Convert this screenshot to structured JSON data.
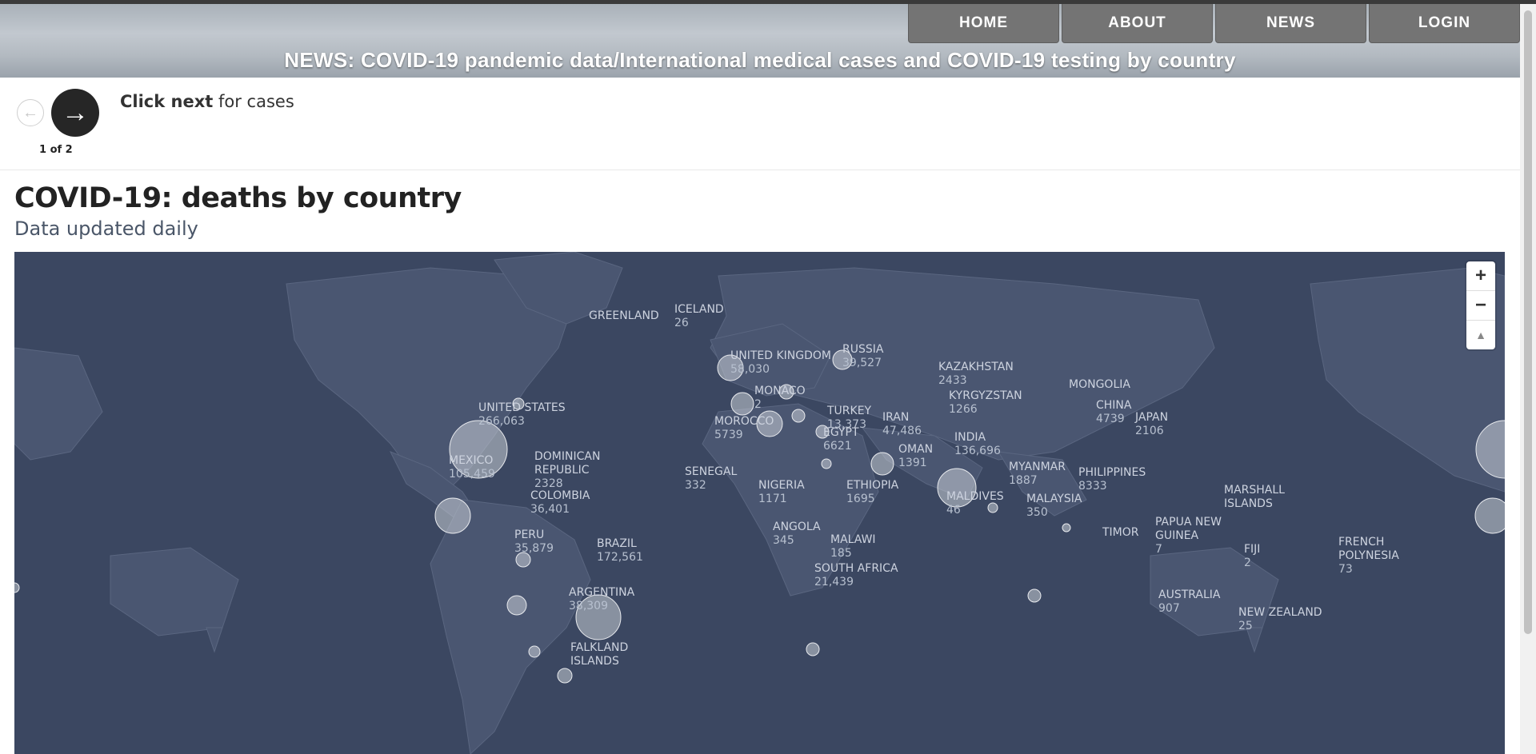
{
  "nav": {
    "items": [
      {
        "label": "HOME"
      },
      {
        "label": "ABOUT"
      },
      {
        "label": "NEWS"
      },
      {
        "label": "LOGIN"
      }
    ]
  },
  "header": {
    "headline": "NEWS: COVID-19 pandemic data/International medical cases and COVID-19 testing by country"
  },
  "stepper": {
    "instruction_bold": "Click next",
    "instruction_rest": " for cases",
    "counter": "1 of 2",
    "prev_icon": "arrow-left-icon",
    "next_icon": "arrow-right-icon"
  },
  "map": {
    "title": "COVID-19: deaths by country",
    "subtitle": "Data updated daily",
    "zoom_in": "+",
    "zoom_out": "−",
    "compass": "▲",
    "colors": {
      "background": "#3b4761",
      "land": "#4a5671",
      "bubble": "#c9cdd5"
    },
    "labels": [
      {
        "name": "GREENLAND",
        "value": ""
      },
      {
        "name": "ICELAND",
        "value": "26"
      },
      {
        "name": "UNITED KINGDOM",
        "value": "58,030"
      },
      {
        "name": "RUSSIA",
        "value": "39,527"
      },
      {
        "name": "KAZAKHSTAN",
        "value": "2433"
      },
      {
        "name": "KYRGYZSTAN",
        "value": "1266"
      },
      {
        "name": "MONGOLIA",
        "value": ""
      },
      {
        "name": "CHINA",
        "value": "4739"
      },
      {
        "name": "JAPAN",
        "value": "2106"
      },
      {
        "name": "MONACO",
        "value": "2"
      },
      {
        "name": "TURKEY",
        "value": "13,373"
      },
      {
        "name": "IRAN",
        "value": "47,486"
      },
      {
        "name": "UNITED STATES",
        "value": "266,063"
      },
      {
        "name": "MOROCCO",
        "value": "5739"
      },
      {
        "name": "EGYPT",
        "value": "6621"
      },
      {
        "name": "INDIA",
        "value": "136,696"
      },
      {
        "name": "OMAN",
        "value": "1391"
      },
      {
        "name": "DOMINICAN REPUBLIC",
        "value": "2328"
      },
      {
        "name": "MEXICO",
        "value": "105,459"
      },
      {
        "name": "SENEGAL",
        "value": "332"
      },
      {
        "name": "MYANMAR",
        "value": "1887"
      },
      {
        "name": "PHILIPPINES",
        "value": "8333"
      },
      {
        "name": "NIGERIA",
        "value": "1171"
      },
      {
        "name": "ETHIOPIA",
        "value": "1695"
      },
      {
        "name": "COLOMBIA",
        "value": "36,401"
      },
      {
        "name": "MARSHALL ISLANDS",
        "value": ""
      },
      {
        "name": "MALDIVES",
        "value": "46"
      },
      {
        "name": "MALAYSIA",
        "value": "350"
      },
      {
        "name": "PERU",
        "value": "35,879"
      },
      {
        "name": "BRAZIL",
        "value": "172,561"
      },
      {
        "name": "TIMOR",
        "value": ""
      },
      {
        "name": "PAPUA NEW GUINEA",
        "value": "7"
      },
      {
        "name": "FIJI",
        "value": "2"
      },
      {
        "name": "FRENCH POLYNESIA",
        "value": "73"
      },
      {
        "name": "ANGOLA",
        "value": "345"
      },
      {
        "name": "MALAWI",
        "value": "185"
      },
      {
        "name": "SOUTH AFRICA",
        "value": "21,439"
      },
      {
        "name": "ARGENTINA",
        "value": "38,309"
      },
      {
        "name": "AUSTRALIA",
        "value": "907"
      },
      {
        "name": "NEW ZEALAND",
        "value": "25"
      },
      {
        "name": "FALKLAND ISLANDS",
        "value": ""
      }
    ]
  }
}
